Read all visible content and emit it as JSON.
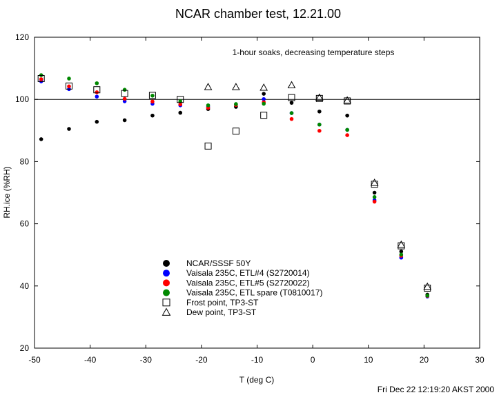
{
  "chart_data": {
    "type": "scatter",
    "title": "NCAR chamber test,  12.21.00",
    "annotation": "1-hour soaks, decreasing temperature steps",
    "xlabel": "T (deg C)",
    "ylabel": "RH.ice (%RH)",
    "xlim": [
      -50,
      30
    ],
    "ylim": [
      20,
      120
    ],
    "xticks": [
      -50,
      -40,
      -30,
      -20,
      -10,
      0,
      10,
      20,
      30
    ],
    "yticks": [
      20,
      40,
      60,
      80,
      100,
      120
    ],
    "xtick_labels": [
      "-50",
      "-40",
      "-30",
      "-20",
      "-10",
      "0",
      "10",
      "20",
      "30"
    ],
    "ytick_labels": [
      "20",
      "40",
      "60",
      "80",
      "100",
      "120"
    ],
    "reference_line": 100,
    "timestamp": "Fri Dec 22 12:19:20 AKST 2000",
    "legend_position": "lower-center",
    "series": [
      {
        "name": "NCAR/SSSF 50Y",
        "marker": "dot",
        "color": "#000000",
        "x": [
          -48.8,
          -43.8,
          -38.8,
          -33.8,
          -28.8,
          -23.8,
          -18.8,
          -13.8,
          -8.8,
          -3.8,
          1.2,
          6.2,
          11.1,
          15.9,
          20.6
        ],
        "y": [
          87.2,
          90.5,
          92.8,
          93.3,
          94.8,
          95.7,
          96.9,
          97.6,
          101.8,
          98.9,
          96.1,
          94.8,
          70.0,
          51.1,
          37.2
        ]
      },
      {
        "name": "Vaisala 235C, ETL#4 (S2720014)",
        "marker": "dot",
        "color": "#0000ff",
        "x": [
          -48.8,
          -43.8,
          -38.8,
          -33.8,
          -28.8,
          -23.8,
          -18.8,
          -13.8,
          -8.8,
          -3.8,
          1.2,
          6.2,
          11.1,
          15.9,
          20.6
        ],
        "y": [
          105.8,
          103.3,
          100.9,
          99.4,
          98.6,
          98.1,
          97.6,
          98.3,
          100.1,
          95.6,
          91.9,
          90.2,
          67.6,
          49.1,
          36.6
        ]
      },
      {
        "name": "Vaisala 235C, ETL#5 (S2720022)",
        "marker": "dot",
        "color": "#ff0000",
        "x": [
          -48.8,
          -43.8,
          -38.8,
          -33.8,
          -28.8,
          -23.8,
          -18.8,
          -13.8,
          -8.8,
          -3.8,
          1.2,
          6.2,
          11.1,
          15.9,
          20.6
        ],
        "y": [
          106.5,
          104.2,
          102.3,
          100.2,
          99.3,
          98.4,
          97.3,
          98.2,
          99.1,
          93.7,
          89.9,
          88.5,
          67.1,
          49.7,
          36.8
        ]
      },
      {
        "name": "Vaisala 235C, ETL spare (T0810017)",
        "marker": "dot",
        "color": "#008800",
        "x": [
          -48.8,
          -43.8,
          -38.8,
          -33.8,
          -28.8,
          -23.8,
          -18.8,
          -13.8,
          -8.8,
          -3.8,
          1.2,
          6.2,
          11.1,
          15.9,
          20.6
        ],
        "y": [
          107.8,
          106.7,
          105.2,
          103.1,
          101.2,
          99.4,
          98.1,
          98.5,
          98.6,
          95.6,
          91.9,
          90.2,
          68.6,
          50.1,
          36.9
        ]
      },
      {
        "name": "Frost point, TP3-ST",
        "marker": "square",
        "color": "#000000",
        "x": [
          -48.8,
          -43.8,
          -38.8,
          -33.8,
          -28.8,
          -23.8,
          -18.8,
          -13.8,
          -8.8,
          -3.8,
          1.2,
          6.2,
          11.1,
          15.9,
          20.6
        ],
        "y": [
          106.7,
          104.3,
          103.1,
          101.9,
          101.3,
          100.0,
          85.0,
          89.8,
          94.9,
          100.6,
          100.3,
          99.5,
          72.7,
          52.9,
          39.3
        ]
      },
      {
        "name": "Dew point, TP3-ST",
        "marker": "triangle",
        "color": "#000000",
        "x": [
          -18.8,
          -13.8,
          -8.8,
          -3.8,
          1.2,
          6.2,
          11.1,
          15.9,
          20.6
        ],
        "y": [
          104.0,
          104.0,
          103.8,
          104.6,
          100.6,
          99.7,
          73.2,
          53.3,
          39.8
        ]
      }
    ]
  }
}
